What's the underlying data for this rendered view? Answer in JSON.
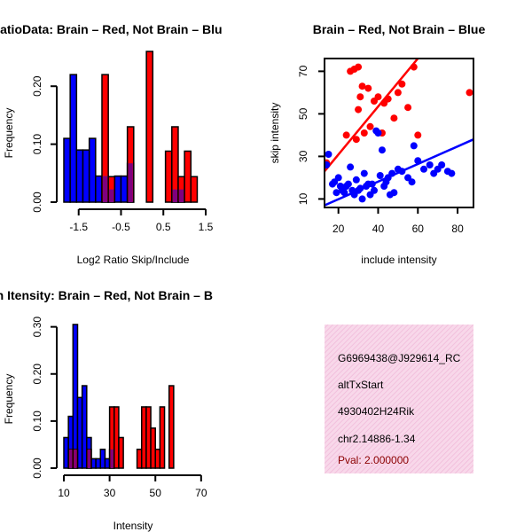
{
  "colors": {
    "red": "#ff0000",
    "blue": "#0000ff",
    "overlap": "#7f007f",
    "info_bg": "#f8d8ea",
    "info_hatch": "#f0b8d8",
    "pval": "#8b0000"
  },
  "chart_data": [
    {
      "id": "ratio_hist",
      "type": "bar",
      "title": "RatioData: Brain – Red, Not Brain – Blu",
      "xlabel": "Log2 Ratio Skip/Include",
      "ylabel": "Frequency",
      "xlim": [
        -1.85,
        1.5
      ],
      "ylim": [
        0,
        0.26
      ],
      "xticks": [
        -1.5,
        -0.5,
        0.5,
        1.5
      ],
      "xtick_labels": [
        "-1.5",
        "-0.5",
        "0.5",
        "1.5"
      ],
      "yticks": [
        0.0,
        0.1,
        0.2
      ],
      "ytick_labels": [
        "0.00",
        "0.10",
        "0.20"
      ],
      "bin_edges": [
        -1.85,
        -1.7,
        -1.55,
        -1.4,
        -1.25,
        -1.1,
        -0.95,
        -0.8,
        -0.65,
        -0.5,
        -0.35,
        -0.2,
        -0.05,
        0.1,
        0.25,
        0.4,
        0.55,
        0.7,
        0.85,
        1.0,
        1.15,
        1.3,
        1.45
      ],
      "series": [
        {
          "name": "Not Brain",
          "color": "blue",
          "values": [
            0.11,
            0.22,
            0.09,
            0.09,
            0.11,
            0.045,
            0.045,
            0.022,
            0.045,
            0.045,
            0.067,
            0.0,
            0.0,
            0.0,
            0.0,
            0.0,
            0.0,
            0.022,
            0.022,
            0.0,
            0.0,
            0.0
          ]
        },
        {
          "name": "Brain",
          "color": "red",
          "values": [
            0.0,
            0.0,
            0.0,
            0.0,
            0.0,
            0.0,
            0.22,
            0.044,
            0.0,
            0.0,
            0.13,
            0.0,
            0.0,
            0.26,
            0.0,
            0.0,
            0.088,
            0.13,
            0.044,
            0.088,
            0.044,
            0.0
          ]
        }
      ]
    },
    {
      "id": "scatter",
      "type": "scatter",
      "title": "Brain – Red, Not Brain – Blue",
      "xlabel": "include intensity",
      "ylabel": "skip intensity",
      "xlim": [
        13,
        88
      ],
      "ylim": [
        6,
        76
      ],
      "xticks": [
        20,
        40,
        60,
        80
      ],
      "xtick_labels": [
        "20",
        "40",
        "60",
        "80"
      ],
      "yticks": [
        10,
        30,
        50,
        70
      ],
      "ytick_labels": [
        "10",
        "30",
        "50",
        "70"
      ],
      "series": [
        {
          "name": "Brain",
          "color": "red",
          "x": [
            14,
            22,
            24,
            26,
            28,
            29,
            30,
            30,
            31,
            32,
            33,
            35,
            36,
            38,
            40,
            42,
            43,
            45,
            48,
            50,
            52,
            55,
            58,
            60,
            86
          ],
          "y": [
            27,
            14,
            40,
            70,
            71,
            38,
            72,
            52,
            58,
            63,
            41,
            62,
            44,
            56,
            58,
            41,
            55,
            57,
            48,
            60,
            64,
            53,
            72,
            40,
            60
          ],
          "fit": [
            [
              13,
              23
            ],
            [
              60,
              76
            ]
          ]
        },
        {
          "name": "Not Brain",
          "color": "blue",
          "x": [
            14,
            15,
            17,
            18,
            19,
            20,
            21,
            22,
            23,
            24,
            25,
            26,
            27,
            28,
            29,
            30,
            31,
            32,
            33,
            34,
            35,
            36,
            37,
            38,
            39,
            40,
            41,
            42,
            43,
            44,
            45,
            46,
            47,
            48,
            50,
            52,
            55,
            57,
            58,
            60,
            63,
            66,
            68,
            70,
            72,
            75,
            77
          ],
          "y": [
            26,
            31,
            17,
            18,
            13,
            20,
            16,
            14,
            13,
            16,
            17,
            25,
            14,
            12,
            19,
            14,
            15,
            10,
            22,
            16,
            17,
            12,
            17,
            14,
            42,
            41,
            21,
            33,
            16,
            18,
            20,
            12,
            22,
            13,
            24,
            23,
            20,
            18,
            35,
            28,
            24,
            26,
            22,
            24,
            26,
            23,
            22
          ],
          "fit": [
            [
              13,
              7
            ],
            [
              88,
              38
            ]
          ]
        }
      ]
    },
    {
      "id": "intensity_hist",
      "type": "bar",
      "title": "Exon Itensity: Brain – Red, Not Brain – B",
      "xlabel": "Intensity",
      "ylabel": "Frequency",
      "xlim": [
        10,
        72
      ],
      "ylim": [
        0,
        0.32
      ],
      "xticks": [
        10,
        30,
        50,
        70
      ],
      "xtick_labels": [
        "10",
        "30",
        "50",
        "70"
      ],
      "yticks": [
        0.0,
        0.1,
        0.2,
        0.3
      ],
      "ytick_labels": [
        "0.00",
        "0.10",
        "0.20",
        "0.30"
      ],
      "bin_edges": [
        10,
        12,
        14,
        16,
        18,
        20,
        22,
        24,
        26,
        28,
        30,
        32,
        34,
        36,
        38,
        40,
        42,
        44,
        46,
        48,
        50,
        52,
        54,
        56,
        58,
        60,
        62,
        64,
        66,
        68,
        70,
        72
      ],
      "series": [
        {
          "name": "Not Brain",
          "color": "blue",
          "values": [
            0.065,
            0.11,
            0.305,
            0.15,
            0.175,
            0.065,
            0.02,
            0.02,
            0.04,
            0.02,
            0.04,
            0.0,
            0.0,
            0.0,
            0.0,
            0.0,
            0.0,
            0.0,
            0.0,
            0.0,
            0.0,
            0.0,
            0.0,
            0.0,
            0.0,
            0.0,
            0.0,
            0.0,
            0.0,
            0.0,
            0.0
          ]
        },
        {
          "name": "Brain",
          "color": "red",
          "values": [
            0.0,
            0.04,
            0.04,
            0.0,
            0.0,
            0.04,
            0.0,
            0.0,
            0.0,
            0.0,
            0.13,
            0.13,
            0.065,
            0.0,
            0.0,
            0.0,
            0.04,
            0.13,
            0.13,
            0.085,
            0.04,
            0.13,
            0.0,
            0.175,
            0.0,
            0.0,
            0.0,
            0.0,
            0.0,
            0.0,
            0.0
          ]
        }
      ]
    }
  ],
  "info": {
    "line1": "G6969438@J929614_RC",
    "line2": "altTxStart",
    "line3": "4930402H24Rik",
    "line4": "chr2.14886-1.34",
    "pval": "Pval: 2.000000"
  }
}
